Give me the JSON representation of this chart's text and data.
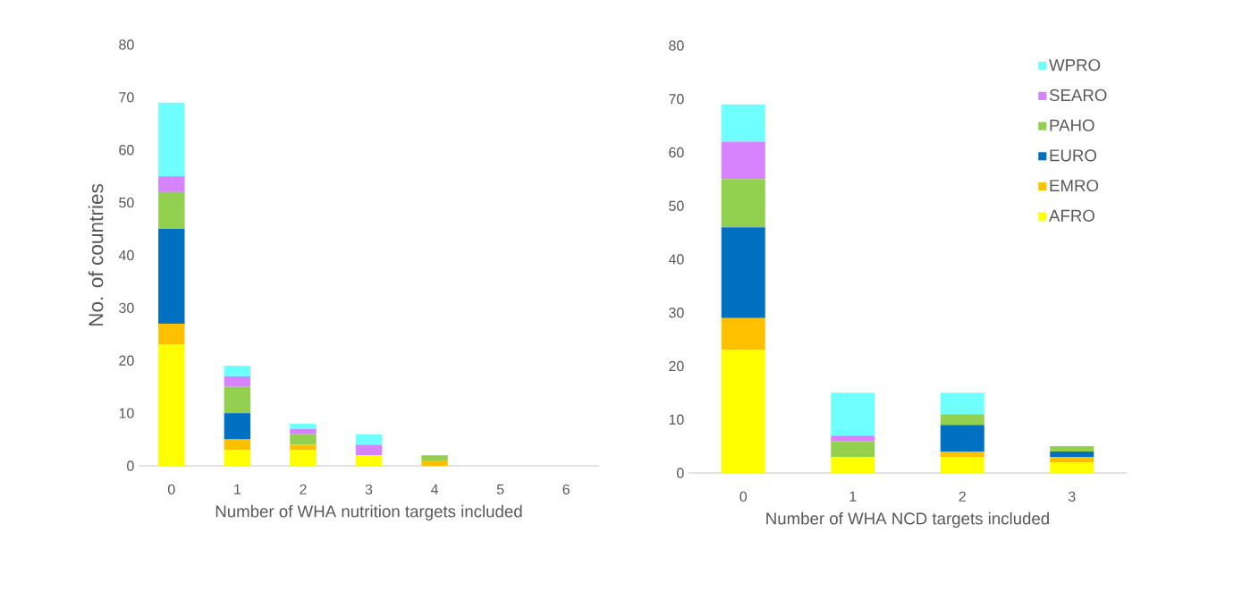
{
  "chart_data": [
    {
      "type": "bar",
      "stacked": true,
      "xlabel": "Number of WHA nutrition targets included",
      "ylabel": "No. of countries",
      "categories": [
        "0",
        "1",
        "2",
        "3",
        "4",
        "5",
        "6"
      ],
      "ylim": [
        0,
        80
      ],
      "yticks": [
        0,
        10,
        20,
        30,
        40,
        50,
        60,
        70,
        80
      ],
      "legend": false,
      "series": [
        {
          "color": "#ffff00",
          "values": [
            23,
            3,
            3,
            2,
            0,
            0,
            0
          ]
        },
        {
          "color": "#ffc000",
          "values": [
            4,
            2,
            1,
            0,
            1,
            0,
            0
          ]
        },
        {
          "color": "#0070c0",
          "values": [
            18,
            5,
            0,
            0,
            0,
            0,
            0
          ]
        },
        {
          "color": "#92d050",
          "values": [
            7,
            5,
            2,
            0,
            1,
            0,
            0
          ]
        },
        {
          "color": "#d783ff",
          "values": [
            3,
            2,
            1,
            2,
            0,
            0,
            0
          ]
        },
        {
          "color": "#6fffff",
          "values": [
            14,
            2,
            1,
            2,
            0,
            0,
            0
          ]
        }
      ]
    },
    {
      "type": "bar",
      "stacked": true,
      "xlabel": "Number of WHA NCD targets included",
      "categories": [
        "0",
        "1",
        "2",
        "3"
      ],
      "ylim": [
        0,
        80
      ],
      "yticks": [
        0,
        10,
        20,
        30,
        40,
        50,
        60,
        70,
        80
      ],
      "legend": "top right",
      "series": [
        {
          "name": "AFRO",
          "color": "#ffff00",
          "values": [
            23,
            3,
            3,
            2
          ]
        },
        {
          "name": "EMRO",
          "color": "#ffc000",
          "values": [
            6,
            0,
            1,
            1
          ]
        },
        {
          "name": "EURO",
          "color": "#0070c0",
          "values": [
            17,
            0,
            5,
            1
          ]
        },
        {
          "name": "PAHO",
          "color": "#92d050",
          "values": [
            9,
            3,
            2,
            1
          ]
        },
        {
          "name": "SEARO",
          "color": "#d783ff",
          "values": [
            7,
            1,
            0,
            0
          ]
        },
        {
          "name": "WPRO",
          "color": "#6fffff",
          "values": [
            7,
            8,
            4,
            0
          ]
        }
      ]
    }
  ]
}
